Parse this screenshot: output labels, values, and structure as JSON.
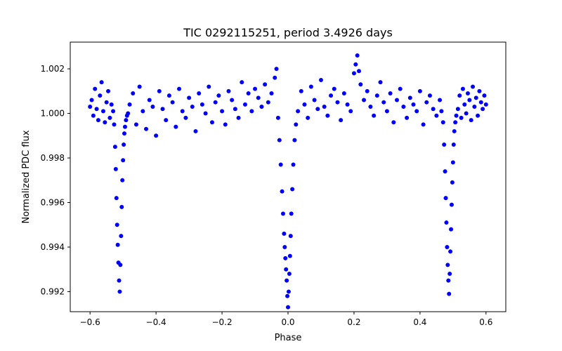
{
  "chart_data": {
    "type": "scatter",
    "title": "TIC 0292115251, period 3.4926 days",
    "xlabel": "Phase",
    "ylabel": "Normalized PDC flux",
    "xlim": [
      -0.66,
      0.66
    ],
    "ylim": [
      0.9911,
      1.0032
    ],
    "xticks": [
      -0.6,
      -0.4,
      -0.2,
      0.0,
      0.2,
      0.4,
      0.6
    ],
    "xtick_labels": [
      "−0.6",
      "−0.4",
      "−0.2",
      "0.0",
      "0.2",
      "0.4",
      "0.6"
    ],
    "yticks": [
      0.992,
      0.994,
      0.996,
      0.998,
      1.0,
      1.002
    ],
    "ytick_labels": [
      "0.992",
      "0.994",
      "0.996",
      "0.998",
      "1.000",
      "1.002"
    ],
    "marker_color": "#0000ff",
    "grid": false,
    "series": [
      {
        "x": [
          -0.6,
          -0.595,
          -0.59,
          -0.585,
          -0.58,
          -0.575,
          -0.57,
          -0.565,
          -0.56,
          -0.555,
          -0.55,
          -0.545,
          -0.54,
          -0.535,
          -0.53,
          -0.527,
          -0.524,
          -0.522,
          -0.52,
          -0.518,
          -0.516,
          -0.514,
          -0.512,
          -0.51,
          -0.508,
          -0.506,
          -0.504,
          -0.502,
          -0.5,
          -0.498,
          -0.496,
          -0.494,
          -0.491,
          -0.488,
          -0.485,
          -0.48,
          -0.47,
          -0.46,
          -0.45,
          -0.44,
          -0.43,
          -0.42,
          -0.41,
          -0.4,
          -0.39,
          -0.38,
          -0.37,
          -0.36,
          -0.35,
          -0.34,
          -0.33,
          -0.32,
          -0.31,
          -0.3,
          -0.29,
          -0.28,
          -0.27,
          -0.26,
          -0.25,
          -0.24,
          -0.23,
          -0.22,
          -0.21,
          -0.2,
          -0.19,
          -0.18,
          -0.17,
          -0.16,
          -0.15,
          -0.14,
          -0.13,
          -0.12,
          -0.11,
          -0.1,
          -0.09,
          -0.08,
          -0.07,
          -0.06,
          -0.05,
          -0.04,
          -0.035,
          -0.03,
          -0.026,
          -0.022,
          -0.018,
          -0.015,
          -0.012,
          -0.01,
          -0.008,
          -0.006,
          -0.004,
          -0.002,
          0.0,
          0.002,
          0.004,
          0.006,
          0.008,
          0.01,
          0.013,
          0.016,
          0.02,
          0.024,
          0.03,
          0.04,
          0.05,
          0.06,
          0.07,
          0.08,
          0.09,
          0.1,
          0.11,
          0.12,
          0.13,
          0.14,
          0.15,
          0.16,
          0.17,
          0.18,
          0.19,
          0.2,
          0.205,
          0.21,
          0.215,
          0.22,
          0.23,
          0.24,
          0.25,
          0.26,
          0.27,
          0.28,
          0.29,
          0.3,
          0.31,
          0.32,
          0.33,
          0.34,
          0.35,
          0.36,
          0.37,
          0.38,
          0.39,
          0.4,
          0.41,
          0.42,
          0.43,
          0.44,
          0.45,
          0.46,
          0.465,
          0.47,
          0.473,
          0.476,
          0.478,
          0.48,
          0.482,
          0.484,
          0.486,
          0.488,
          0.49,
          0.492,
          0.494,
          0.496,
          0.498,
          0.5,
          0.502,
          0.504,
          0.507,
          0.51,
          0.515,
          0.52,
          0.525,
          0.53,
          0.535,
          0.54,
          0.545,
          0.55,
          0.555,
          0.56,
          0.565,
          0.57,
          0.575,
          0.58,
          0.585,
          0.59,
          0.595,
          0.6
        ],
        "y": [
          1.0003,
          1.0006,
          0.9999,
          1.0011,
          1.0002,
          0.9997,
          1.0008,
          1.0014,
          1.0001,
          0.9996,
          1.0005,
          1.001,
          0.9998,
          1.0004,
          1.0001,
          0.9995,
          0.9985,
          0.9975,
          0.9962,
          0.995,
          0.9941,
          0.9933,
          0.9925,
          0.992,
          0.9932,
          0.9945,
          0.9958,
          0.997,
          0.9979,
          0.9986,
          0.9991,
          0.9994,
          0.9997,
          0.9999,
          1.0,
          1.0004,
          1.0009,
          0.9995,
          1.0012,
          1.0001,
          0.9993,
          1.0006,
          1.0003,
          0.999,
          1.001,
          1.0002,
          0.9997,
          1.0008,
          1.0005,
          0.9994,
          1.0011,
          1.0001,
          0.9998,
          1.0007,
          1.0003,
          0.9992,
          1.0009,
          1.0004,
          1.0,
          1.0012,
          0.9996,
          1.0005,
          1.0008,
          1.0001,
          0.9995,
          1.001,
          1.0006,
          1.0002,
          0.9998,
          1.0014,
          1.0004,
          1.0009,
          1.0001,
          1.0011,
          1.0007,
          1.0003,
          1.0013,
          1.0005,
          1.0009,
          1.0016,
          1.002,
          0.9998,
          0.9988,
          0.9977,
          0.9965,
          0.9955,
          0.9946,
          0.994,
          0.9935,
          0.993,
          0.9925,
          0.9918,
          0.9913,
          0.992,
          0.9928,
          0.9936,
          0.9945,
          0.9955,
          0.9966,
          0.9977,
          0.9988,
          0.9995,
          1.0001,
          1.001,
          1.0004,
          0.9998,
          1.0012,
          1.0006,
          1.0002,
          1.0015,
          1.0003,
          0.9999,
          1.0008,
          1.0011,
          1.0005,
          0.9997,
          1.0009,
          1.0004,
          1.0001,
          1.0018,
          1.0022,
          1.0026,
          1.0019,
          1.0013,
          1.0006,
          1.001,
          1.0003,
          0.9999,
          1.0008,
          1.0014,
          1.0005,
          1.0001,
          1.0009,
          0.9996,
          1.0006,
          1.0011,
          1.0003,
          0.9998,
          1.0007,
          1.0004,
          1.0001,
          1.001,
          0.9995,
          1.0005,
          1.0008,
          1.0002,
          0.9999,
          1.0006,
          1.0001,
          0.9996,
          0.9986,
          0.9974,
          0.9962,
          0.9951,
          0.994,
          0.9932,
          0.9925,
          0.9919,
          0.9928,
          0.9938,
          0.9948,
          0.9959,
          0.9969,
          0.9978,
          0.9986,
          0.9992,
          0.9996,
          0.9999,
          1.0002,
          1.0008,
          0.9998,
          1.0011,
          1.0004,
          1.0,
          1.0009,
          1.0006,
          0.9997,
          1.0012,
          1.0003,
          1.0007,
          0.9999,
          1.001,
          1.0005,
          1.0002,
          1.0008,
          1.0004
        ]
      }
    ]
  }
}
